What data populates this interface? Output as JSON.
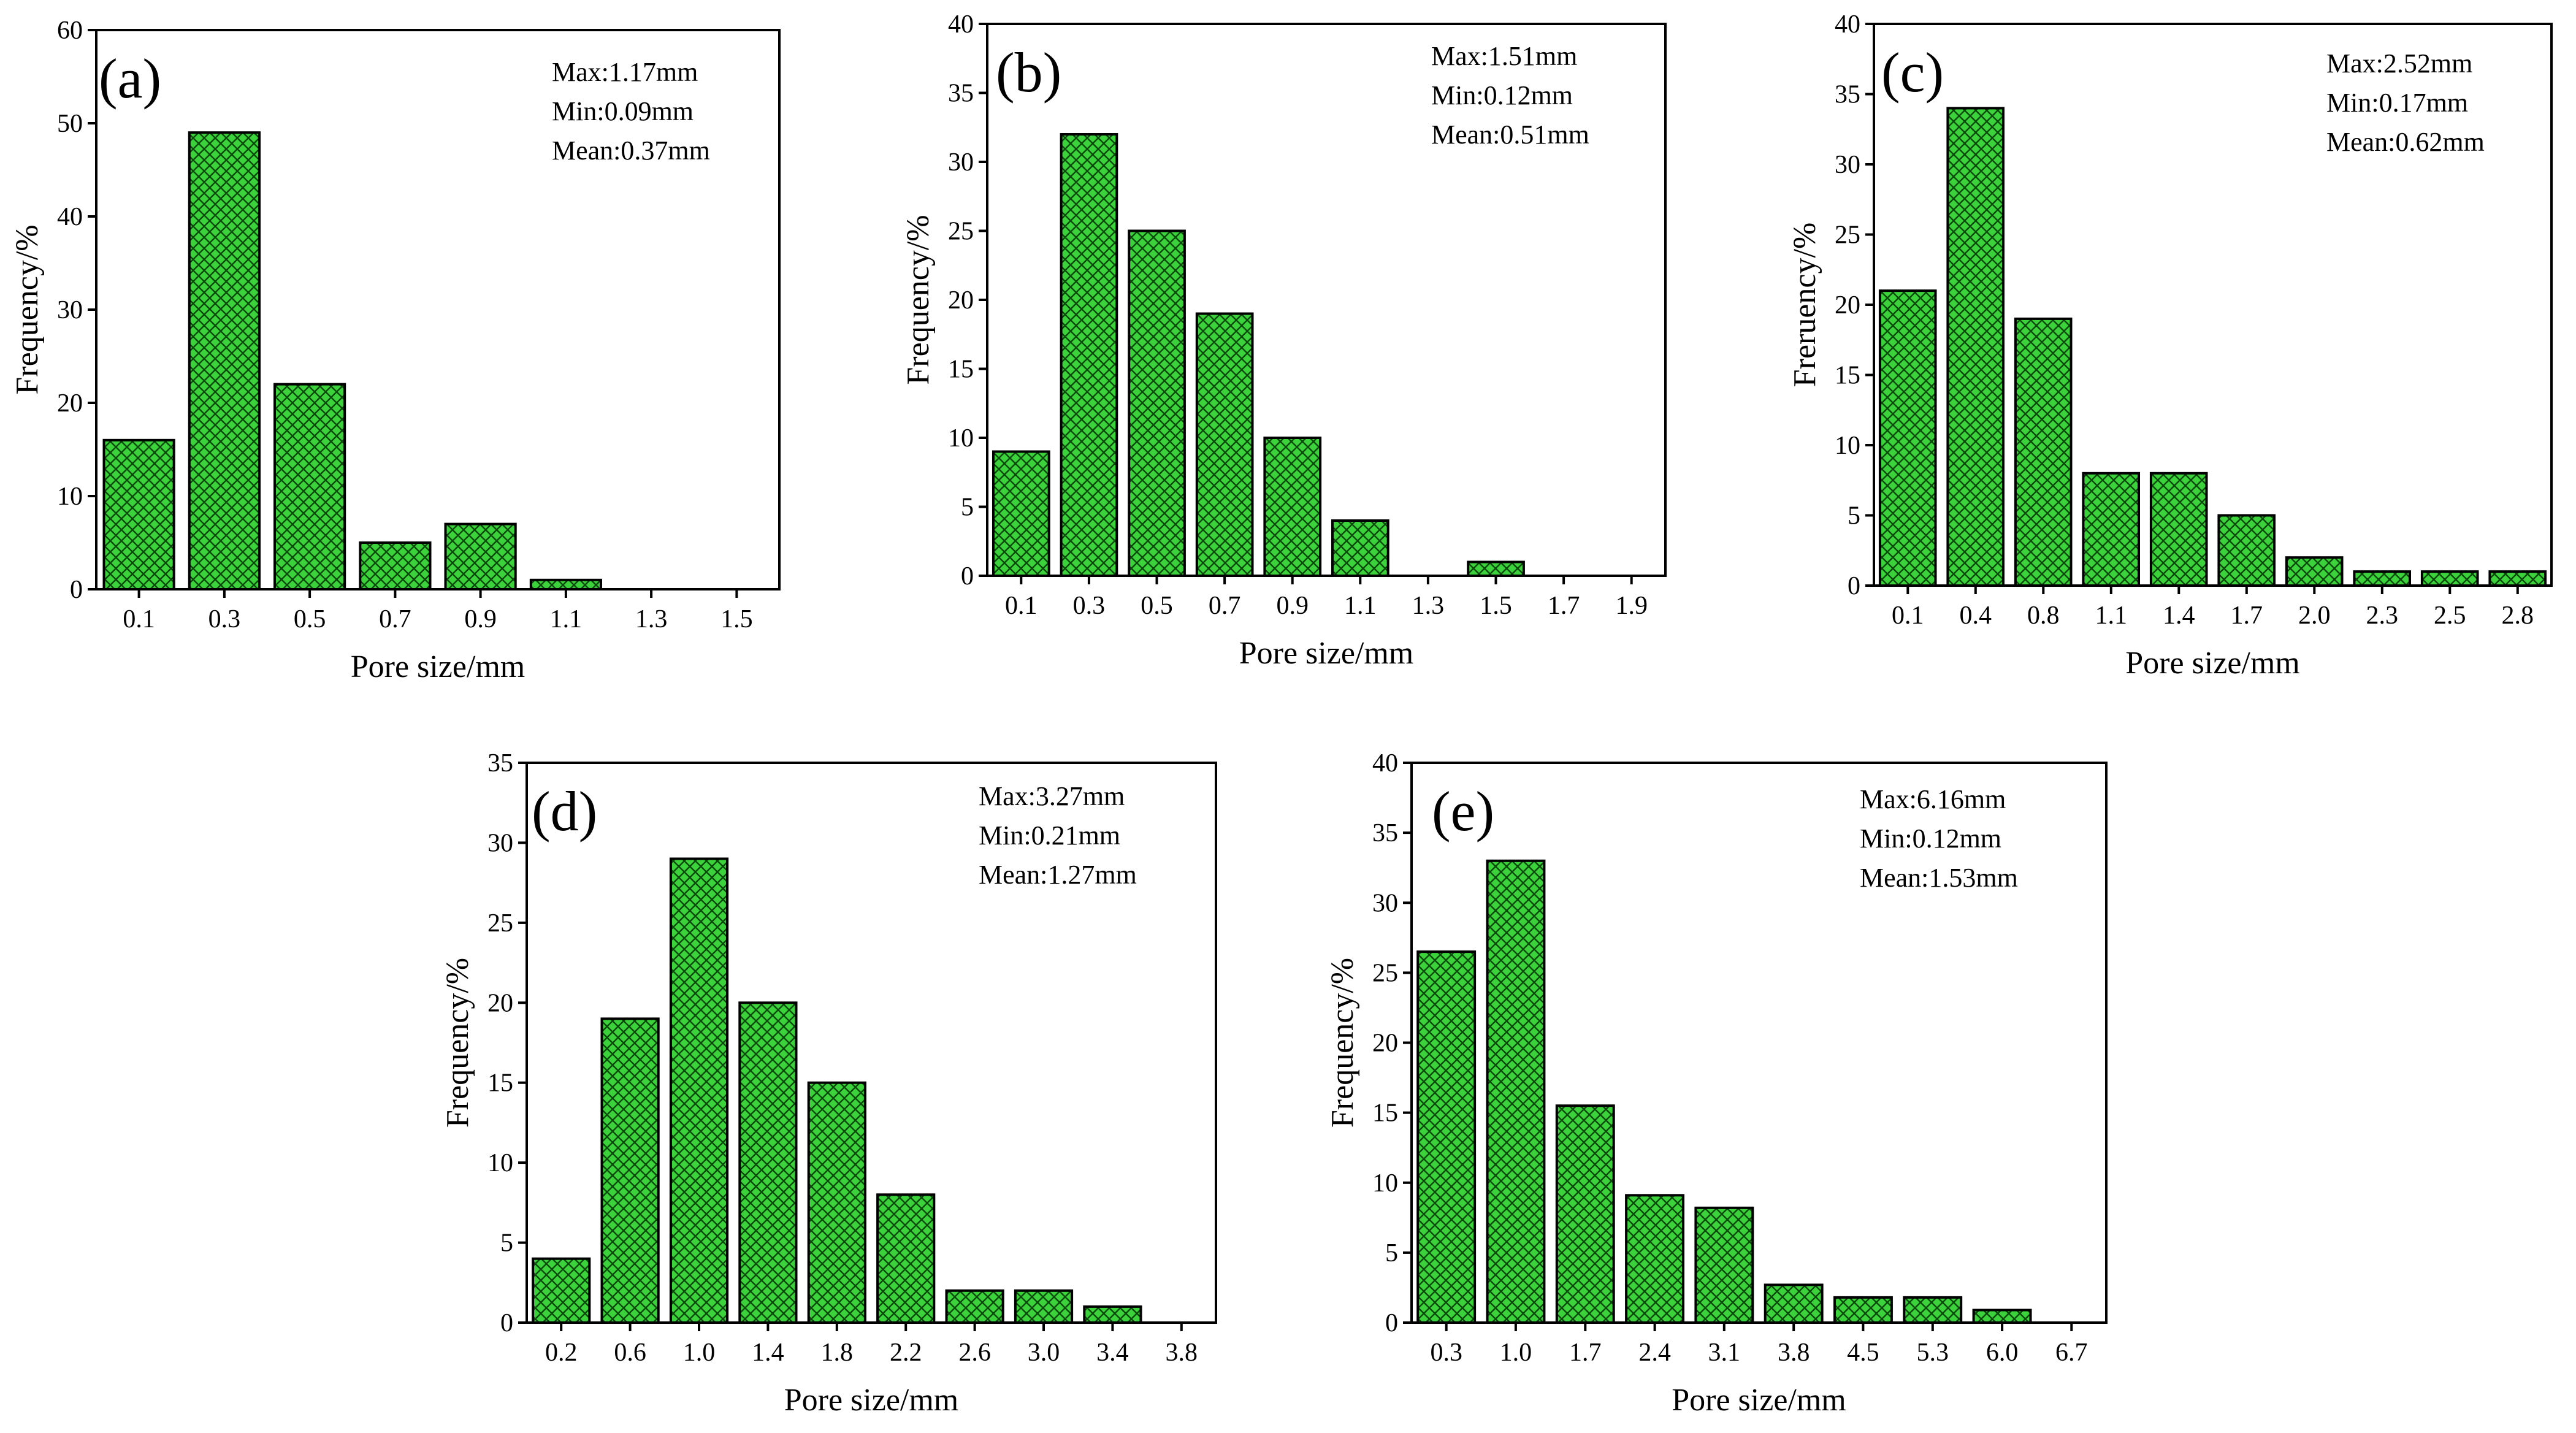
{
  "figure": {
    "bar_color": "#3cd23c",
    "hatch_color": "#0a4a0a",
    "axis_color": "#000000"
  },
  "chart_data": [
    {
      "type": "bar",
      "panel": "(a)",
      "categories": [
        "0.1",
        "0.3",
        "0.5",
        "0.7",
        "0.9",
        "1.1",
        "1.3",
        "1.5"
      ],
      "values": [
        16,
        49,
        22,
        5,
        7,
        1,
        0,
        0
      ],
      "ylim": [
        0,
        60
      ],
      "yticks": [
        "0",
        "10",
        "20",
        "30",
        "40",
        "50",
        "60"
      ],
      "xlabel": "Pore size/mm",
      "ylabel": "Frequency/%",
      "stats": [
        "Max:1.17mm",
        "Min:0.09mm",
        "Mean:0.37mm"
      ]
    },
    {
      "type": "bar",
      "panel": "(b)",
      "categories": [
        "0.1",
        "0.3",
        "0.5",
        "0.7",
        "0.9",
        "1.1",
        "1.3",
        "1.5",
        "1.7",
        "1.9"
      ],
      "values": [
        9,
        32,
        25,
        19,
        10,
        4,
        0,
        1,
        0,
        0
      ],
      "ylim": [
        0,
        40
      ],
      "yticks": [
        "0",
        "5",
        "10",
        "15",
        "20",
        "25",
        "30",
        "35",
        "40"
      ],
      "xlabel": "Pore size/mm",
      "ylabel": "Frequency/%",
      "stats": [
        "Max:1.51mm",
        "Min:0.12mm",
        "Mean:0.51mm"
      ]
    },
    {
      "type": "bar",
      "panel": "(c)",
      "categories": [
        "0.1",
        "0.4",
        "0.8",
        "1.1",
        "1.4",
        "1.7",
        "2.0",
        "2.3",
        "2.5",
        "2.8"
      ],
      "values": [
        21,
        34,
        19,
        8,
        8,
        5,
        2,
        1,
        1,
        1
      ],
      "ylim": [
        0,
        40
      ],
      "yticks": [
        "0",
        "5",
        "10",
        "15",
        "20",
        "25",
        "30",
        "35",
        "40"
      ],
      "xlabel": "Pore size/mm",
      "ylabel": "Freruency/%",
      "stats": [
        "Max:2.52mm",
        "Min:0.17mm",
        "Mean:0.62mm"
      ]
    },
    {
      "type": "bar",
      "panel": "(d)",
      "categories": [
        "0.2",
        "0.6",
        "1.0",
        "1.4",
        "1.8",
        "2.2",
        "2.6",
        "3.0",
        "3.4",
        "3.8"
      ],
      "values": [
        4,
        19,
        29,
        20,
        15,
        8,
        2,
        2,
        1,
        0
      ],
      "ylim": [
        0,
        35
      ],
      "yticks": [
        "0",
        "5",
        "10",
        "15",
        "20",
        "25",
        "30",
        "35"
      ],
      "xlabel": "Pore size/mm",
      "ylabel": "Frequency/%",
      "stats": [
        "Max:3.27mm",
        "Min:0.21mm",
        "Mean:1.27mm"
      ]
    },
    {
      "type": "bar",
      "panel": "(e)",
      "categories": [
        "0.3",
        "1.0",
        "1.7",
        "2.4",
        "3.1",
        "3.8",
        "4.5",
        "5.3",
        "6.0",
        "6.7"
      ],
      "values": [
        26.5,
        33,
        15.5,
        9.1,
        8.2,
        2.7,
        1.8,
        1.8,
        0.9,
        0
      ],
      "ylim": [
        0,
        40
      ],
      "yticks": [
        "0",
        "5",
        "10",
        "15",
        "20",
        "25",
        "30",
        "35",
        "40"
      ],
      "xlabel": "Pore size/mm",
      "ylabel": "Frequency/%",
      "stats": [
        "Max:6.16mm",
        "Min:0.12mm",
        "Mean:1.53mm"
      ]
    }
  ]
}
